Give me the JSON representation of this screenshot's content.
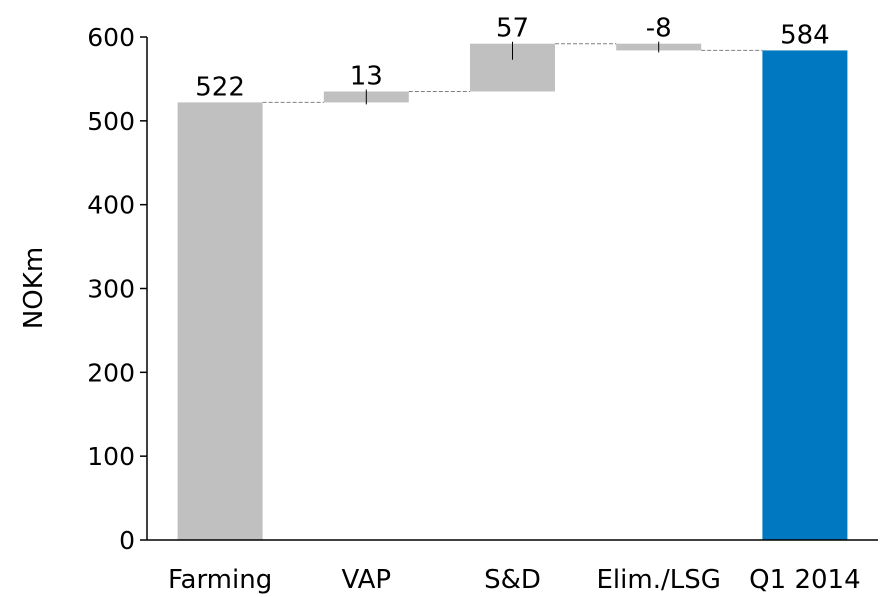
{
  "chart_data": {
    "type": "bar",
    "subtype": "waterfall",
    "title": "",
    "xlabel": "",
    "ylabel": "NOKm",
    "ylim": [
      0,
      600
    ],
    "yticks": [
      0,
      100,
      200,
      300,
      400,
      500,
      600
    ],
    "grid": false,
    "legend": "none",
    "categories": [
      "Farming",
      "VAP",
      "S&D",
      "Elim./LSG",
      "Q1 2014"
    ],
    "values": [
      522,
      13,
      57,
      -8,
      584
    ],
    "labels": [
      "522",
      "13",
      "57",
      "-8",
      "584"
    ],
    "kinds": [
      "total",
      "delta",
      "delta",
      "delta",
      "total"
    ],
    "colors": {
      "start_bar": "#c0c0c0",
      "delta_bar": "#c0c0c0",
      "end_bar": "#0078c1",
      "connector": "#808080",
      "axis": "#000000"
    }
  }
}
